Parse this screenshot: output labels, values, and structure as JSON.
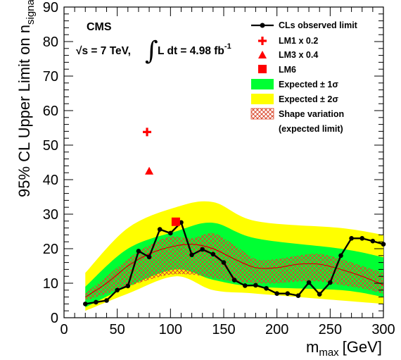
{
  "chart_data": {
    "type": "line",
    "xlabel": "m",
    "xlabel_sub": "max",
    "xlabel_unit": "[GeV]",
    "ylabel": "95% CL Upper Limit on n",
    "ylabel_sub": "signal",
    "xlim": [
      0,
      300
    ],
    "ylim": [
      0,
      90
    ],
    "x_ticks": [
      0,
      50,
      100,
      150,
      200,
      250,
      300
    ],
    "y_ticks": [
      0,
      10,
      20,
      30,
      40,
      50,
      60,
      70,
      80,
      90
    ],
    "grid": false,
    "legend_position": "top-right",
    "annotations": {
      "experiment": "CMS",
      "energy": "√s = 7 TeV,",
      "lumi": "L dt = 4.98 fb",
      "lumi_exp": "-1"
    },
    "observed": {
      "name": "CLs observed limit",
      "color": "#000000",
      "x": [
        20,
        30,
        40,
        50,
        60,
        70,
        80,
        90,
        100,
        110,
        120,
        130,
        140,
        150,
        160,
        170,
        180,
        190,
        200,
        210,
        220,
        230,
        240,
        250,
        260,
        270,
        280,
        290,
        300
      ],
      "y": [
        4.0,
        4.5,
        5.0,
        8.0,
        9.2,
        19.3,
        17.6,
        25.6,
        24.5,
        27.6,
        18.2,
        19.8,
        18.4,
        16.0,
        10.9,
        9.3,
        9.4,
        8.5,
        7.0,
        7.0,
        6.4,
        10.2,
        6.8,
        10.2,
        18.0,
        23.0,
        23.0,
        22.2,
        21.3
      ]
    },
    "expected_median": {
      "color": "#cc0000",
      "x": [
        20,
        40,
        60,
        80,
        100,
        120,
        140,
        160,
        180,
        200,
        220,
        240,
        260,
        280,
        300
      ],
      "y": [
        6.0,
        10.0,
        15.0,
        18.5,
        20.5,
        21.3,
        20.0,
        17.0,
        14.5,
        14.5,
        15.5,
        15.5,
        14.0,
        12.0,
        9.5
      ]
    },
    "bands": [
      {
        "name": "Expected ± 2σ",
        "color": "#ffff00",
        "x": [
          20,
          60,
          105,
          140,
          180,
          260,
          300
        ],
        "low": [
          2.0,
          7.0,
          12.0,
          8.0,
          7.0,
          5.0,
          4.0
        ],
        "high": [
          13.0,
          26.0,
          32.0,
          33.5,
          28.0,
          26.0,
          24.0
        ]
      },
      {
        "name": "Expected ± 1σ",
        "color": "#00ff33",
        "x": [
          20,
          60,
          105,
          140,
          180,
          260,
          300
        ],
        "low": [
          3.0,
          9.0,
          14.0,
          11.0,
          9.0,
          8.0,
          6.0
        ],
        "high": [
          9.0,
          20.0,
          25.0,
          27.5,
          23.0,
          20.0,
          17.5
        ]
      },
      {
        "name": "Shape variation",
        "name_line2": "(expected limit)",
        "color": "#d9472b",
        "hatched": true,
        "x": [
          20,
          40,
          60,
          80,
          100,
          120,
          140,
          160,
          180,
          200,
          220,
          240,
          260,
          280,
          300
        ],
        "low": [
          5.0,
          7.0,
          9.0,
          11.0,
          12.5,
          12.5,
          11.5,
          10.5,
          10.0,
          10.0,
          10.5,
          10.5,
          9.5,
          8.5,
          7.0
        ],
        "high": [
          7.0,
          12.0,
          17.0,
          21.0,
          23.5,
          23.0,
          24.5,
          21.0,
          17.0,
          17.0,
          18.0,
          18.5,
          17.0,
          15.0,
          13.0
        ]
      }
    ],
    "benchmarks": [
      {
        "name": "LM1 x 0.2",
        "marker": "cross",
        "x": 78,
        "y": 53.8,
        "color": "#ff0000"
      },
      {
        "name": "LM3 x 0.4",
        "marker": "triangle",
        "x": 80,
        "y": 42.5,
        "color": "#ff0000"
      },
      {
        "name": "LM6",
        "marker": "square",
        "x": 105,
        "y": 27.8,
        "color": "#ff0000"
      }
    ]
  }
}
